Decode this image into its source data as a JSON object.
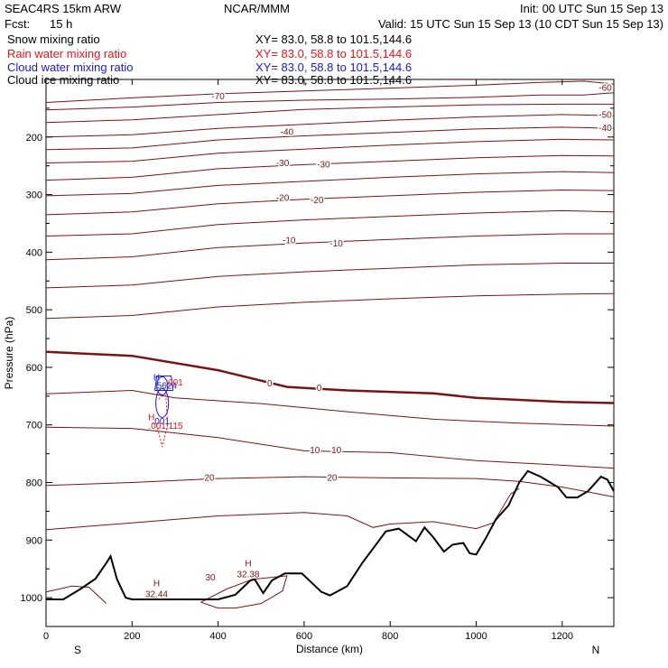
{
  "header": {
    "model": "SEAC4RS 15km ARW",
    "center": "NCAR/MMM",
    "init": "Init: 00 UTC Sun 15 Sep 13",
    "fcst_label": "Fcst:",
    "fcst_value": "15 h",
    "valid": "Valid: 15 UTC Sun 15 Sep 13 (10 CDT Sun 15 Sep 13)",
    "fields": [
      {
        "name": "Snow mixing ratio",
        "color": "#000000",
        "xy": "XY=  83.0, 58.8 to 101.5,144.6"
      },
      {
        "name": "Rain water mixing ratio",
        "color": "#e8141c",
        "xy": "XY=  83.0, 58.8 to 101.5,144.6"
      },
      {
        "name": "Cloud water mixing ratio",
        "color": "#1a1ad8",
        "xy": "XY=  83.0, 58.8 to 101.5,144.6"
      },
      {
        "name": "Cloud ice mixing ratio",
        "color": "#000000",
        "xy": "XY=  83.0, 58.8 to 101.5,144.6"
      }
    ]
  },
  "colors": {
    "temperature": "#7a1414",
    "rain": "#e8141c",
    "cloud": "#1a1ad8",
    "terrain": "#000000"
  },
  "chart_data": {
    "type": "contour-cross-section",
    "xlabel": "Distance (km)",
    "ylabel": "Pressure (hPa)",
    "xlim": [
      0,
      1320
    ],
    "ylim": [
      1050,
      100
    ],
    "x_ticks": [
      0,
      200,
      400,
      600,
      800,
      1000,
      1200
    ],
    "y_ticks": [
      200,
      300,
      400,
      500,
      600,
      700,
      800,
      900,
      1000
    ],
    "left_end_label": "S",
    "right_end_label": "N",
    "temperature_contours": [
      {
        "level": "-70",
        "points": [
          [
            0,
            140
          ],
          [
            200,
            132
          ],
          [
            400,
            125
          ],
          [
            600,
            120
          ],
          [
            800,
            115
          ],
          [
            1000,
            110
          ],
          [
            1150,
            105
          ],
          [
            1250,
            103
          ],
          [
            1320,
            108
          ]
        ]
      },
      {
        "level": "-60",
        "points": [
          [
            0,
            153
          ],
          [
            200,
            148
          ],
          [
            400,
            140
          ],
          [
            600,
            136
          ],
          [
            800,
            134
          ],
          [
            1000,
            131
          ],
          [
            1150,
            127
          ],
          [
            1250,
            127
          ],
          [
            1320,
            123
          ]
        ]
      },
      {
        "level": "",
        "points": [
          [
            0,
            175
          ],
          [
            200,
            170
          ],
          [
            400,
            161
          ],
          [
            600,
            152
          ],
          [
            800,
            148
          ],
          [
            1000,
            144
          ],
          [
            1200,
            143
          ],
          [
            1320,
            143
          ]
        ]
      },
      {
        "level": "-50",
        "points": [
          [
            0,
            200
          ],
          [
            200,
            196
          ],
          [
            400,
            185
          ],
          [
            600,
            178
          ],
          [
            800,
            171
          ],
          [
            1000,
            165
          ],
          [
            1200,
            161
          ],
          [
            1320,
            163
          ]
        ]
      },
      {
        "level": "-40",
        "points": [
          [
            0,
            222
          ],
          [
            200,
            219
          ],
          [
            400,
            205
          ],
          [
            600,
            198
          ],
          [
            800,
            192
          ],
          [
            1000,
            186
          ],
          [
            1200,
            183
          ],
          [
            1320,
            185
          ]
        ]
      },
      {
        "level": "",
        "points": [
          [
            0,
            245
          ],
          [
            200,
            242
          ],
          [
            400,
            228
          ],
          [
            600,
            221
          ],
          [
            800,
            214
          ],
          [
            1000,
            208
          ],
          [
            1200,
            204
          ],
          [
            1320,
            205
          ]
        ]
      },
      {
        "level": "-30",
        "points": [
          [
            0,
            275
          ],
          [
            200,
            270
          ],
          [
            400,
            255
          ],
          [
            600,
            248
          ],
          [
            800,
            242
          ],
          [
            1000,
            236
          ],
          [
            1200,
            232
          ],
          [
            1320,
            233
          ]
        ]
      },
      {
        "level": "",
        "points": [
          [
            0,
            302
          ],
          [
            200,
            298
          ],
          [
            400,
            284
          ],
          [
            600,
            277
          ],
          [
            800,
            270
          ],
          [
            1000,
            264
          ],
          [
            1200,
            260
          ],
          [
            1320,
            262
          ]
        ]
      },
      {
        "level": "-20",
        "points": [
          [
            0,
            335
          ],
          [
            200,
            330
          ],
          [
            400,
            316
          ],
          [
            600,
            308
          ],
          [
            800,
            302
          ],
          [
            1000,
            296
          ],
          [
            1200,
            292
          ],
          [
            1320,
            293
          ]
        ]
      },
      {
        "level": "",
        "points": [
          [
            0,
            372
          ],
          [
            200,
            368
          ],
          [
            400,
            352
          ],
          [
            600,
            344
          ],
          [
            800,
            338
          ],
          [
            1000,
            332
          ],
          [
            1200,
            328
          ],
          [
            1320,
            330
          ]
        ]
      },
      {
        "level": "-10",
        "points": [
          [
            0,
            413
          ],
          [
            200,
            408
          ],
          [
            400,
            392
          ],
          [
            600,
            384
          ],
          [
            800,
            378
          ],
          [
            1000,
            372
          ],
          [
            1200,
            368
          ],
          [
            1320,
            368
          ]
        ]
      },
      {
        "level": "",
        "points": [
          [
            0,
            462
          ],
          [
            200,
            457
          ],
          [
            400,
            442
          ],
          [
            600,
            434
          ],
          [
            800,
            428
          ],
          [
            1000,
            422
          ],
          [
            1200,
            419
          ],
          [
            1320,
            419
          ]
        ]
      },
      {
        "level": "",
        "points": [
          [
            0,
            515
          ],
          [
            200,
            510
          ],
          [
            400,
            495
          ],
          [
            600,
            487
          ],
          [
            800,
            481
          ],
          [
            1000,
            476
          ],
          [
            1200,
            473
          ],
          [
            1320,
            472
          ]
        ]
      },
      {
        "level": "0",
        "points": [
          [
            0,
            573
          ],
          [
            200,
            580
          ],
          [
            400,
            605
          ],
          [
            560,
            634
          ],
          [
            700,
            640
          ],
          [
            900,
            645
          ],
          [
            1000,
            653
          ],
          [
            1200,
            660
          ],
          [
            1320,
            662
          ]
        ]
      },
      {
        "level": "",
        "points": [
          [
            0,
            646
          ],
          [
            200,
            640
          ],
          [
            300,
            653
          ],
          [
            500,
            663
          ],
          [
            700,
            677
          ],
          [
            900,
            690
          ],
          [
            1100,
            697
          ],
          [
            1320,
            702
          ]
        ]
      },
      {
        "level": "10",
        "points": [
          [
            0,
            704
          ],
          [
            200,
            706
          ],
          [
            400,
            722
          ],
          [
            600,
            745
          ],
          [
            800,
            748
          ],
          [
            1000,
            762
          ],
          [
            1200,
            770
          ],
          [
            1320,
            775
          ]
        ]
      },
      {
        "level": "20",
        "points": [
          [
            0,
            805
          ],
          [
            200,
            800
          ],
          [
            400,
            793
          ],
          [
            600,
            790
          ],
          [
            800,
            792
          ],
          [
            1000,
            793
          ],
          [
            1100,
            798
          ],
          [
            1200,
            808
          ],
          [
            1320,
            825
          ]
        ]
      },
      {
        "level": "",
        "points": [
          [
            0,
            882
          ],
          [
            200,
            870
          ],
          [
            400,
            858
          ],
          [
            600,
            852
          ],
          [
            700,
            858
          ],
          [
            760,
            878
          ],
          [
            800,
            872
          ],
          [
            900,
            868
          ],
          [
            1000,
            880
          ],
          [
            1040,
            870
          ],
          [
            1080,
            820
          ],
          [
            1100,
            810
          ]
        ]
      },
      {
        "level": "30",
        "points": [
          [
            360,
            1008
          ],
          [
            420,
            985
          ],
          [
            480,
            968
          ],
          [
            560,
            962
          ],
          [
            550,
            988
          ],
          [
            500,
            1010
          ],
          [
            440,
            1018
          ],
          [
            400,
            1018
          ],
          [
            360,
            1008
          ]
        ]
      },
      {
        "level": "",
        "points": [
          [
            0,
            990
          ],
          [
            60,
            980
          ],
          [
            100,
            982
          ],
          [
            140,
            1010
          ]
        ]
      }
    ],
    "contour_labels": [
      {
        "text": "-70",
        "x": 400,
        "y": 130
      },
      {
        "text": "-60",
        "x": 1300,
        "y": 115
      },
      {
        "text": "-50",
        "x": 1300,
        "y": 162
      },
      {
        "text": "-40",
        "x": 560,
        "y": 192
      },
      {
        "text": "-40",
        "x": 1300,
        "y": 185
      },
      {
        "text": "-30",
        "x": 550,
        "y": 246
      },
      {
        "text": "-30",
        "x": 645,
        "y": 248
      },
      {
        "text": "-20",
        "x": 550,
        "y": 306
      },
      {
        "text": "-20",
        "x": 630,
        "y": 310
      },
      {
        "text": "-10",
        "x": 565,
        "y": 380
      },
      {
        "text": "-10",
        "x": 675,
        "y": 385
      },
      {
        "text": "0",
        "x": 520,
        "y": 628
      },
      {
        "text": "0",
        "x": 635,
        "y": 636
      },
      {
        "text": "10",
        "x": 625,
        "y": 744
      },
      {
        "text": "10",
        "x": 675,
        "y": 744
      },
      {
        "text": "20",
        "x": 380,
        "y": 792
      },
      {
        "text": "20",
        "x": 665,
        "y": 792
      },
      {
        "text": "30",
        "x": 382,
        "y": 965
      }
    ],
    "max_markers": [
      {
        "letter": "H",
        "value": "32.44",
        "x": 257,
        "y": 993
      },
      {
        "letter": "H",
        "value": "32.38",
        "x": 470,
        "y": 958
      }
    ],
    "cloud_labels": [
      {
        "text": "H",
        "color": "#1a1ad8",
        "x": 257,
        "y": 618
      },
      {
        "text": ".5624",
        "color": "#1a1ad8",
        "x": 278,
        "y": 632
      },
      {
        "text": ".001",
        "color": "#1a1ad8",
        "x": 267,
        "y": 694
      },
      {
        "text": ".001",
        "color": "#e8141c",
        "x": 298,
        "y": 627
      },
      {
        "text": "H",
        "color": "#e8141c",
        "x": 245,
        "y": 687
      },
      {
        "text": ".001.115",
        "color": "#e8141c",
        "x": 278,
        "y": 702
      }
    ],
    "terrain_surface": [
      [
        0,
        1003
      ],
      [
        40,
        1003
      ],
      [
        80,
        985
      ],
      [
        115,
        967
      ],
      [
        140,
        940
      ],
      [
        150,
        928
      ],
      [
        165,
        968
      ],
      [
        185,
        1000
      ],
      [
        200,
        1003
      ],
      [
        300,
        1003
      ],
      [
        400,
        1003
      ],
      [
        440,
        995
      ],
      [
        475,
        970
      ],
      [
        485,
        968
      ],
      [
        505,
        992
      ],
      [
        525,
        970
      ],
      [
        555,
        958
      ],
      [
        595,
        958
      ],
      [
        640,
        990
      ],
      [
        660,
        996
      ],
      [
        700,
        980
      ],
      [
        735,
        940
      ],
      [
        765,
        910
      ],
      [
        790,
        885
      ],
      [
        820,
        880
      ],
      [
        860,
        902
      ],
      [
        880,
        878
      ],
      [
        900,
        895
      ],
      [
        925,
        920
      ],
      [
        945,
        908
      ],
      [
        970,
        905
      ],
      [
        985,
        923
      ],
      [
        1000,
        925
      ],
      [
        1020,
        900
      ],
      [
        1045,
        865
      ],
      [
        1075,
        840
      ],
      [
        1100,
        800
      ],
      [
        1120,
        780
      ],
      [
        1150,
        790
      ],
      [
        1190,
        808
      ],
      [
        1210,
        826
      ],
      [
        1235,
        826
      ],
      [
        1260,
        815
      ],
      [
        1290,
        790
      ],
      [
        1305,
        795
      ],
      [
        1320,
        815
      ]
    ]
  }
}
